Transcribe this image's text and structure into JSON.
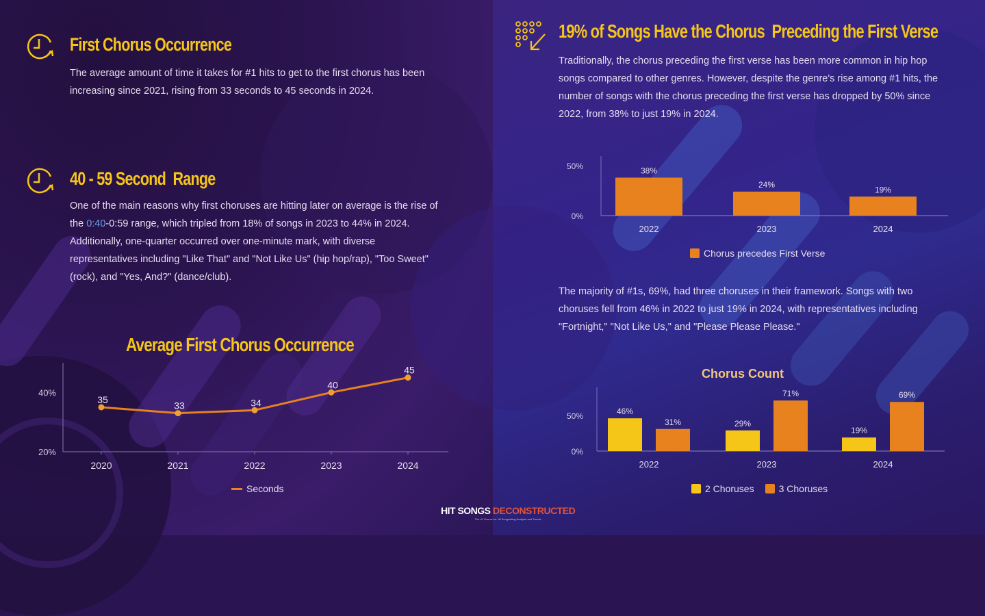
{
  "left": {
    "section1": {
      "icon": "clock-refresh-icon",
      "title": "First Chorus Occurrence",
      "body": "The average amount of time it takes for #1 hits to get to the first chorus has been increasing since 2021, rising from 33 seconds to 45 seconds in 2024."
    },
    "section2": {
      "icon": "clock-refresh-icon",
      "title": "40 - 59 Second  Range",
      "body_pre": "One of the main reasons why first choruses are hitting later on average is the rise of the ",
      "body_highlight": "0:40",
      "body_post": "-0:59 range, which tripled from 18% of songs in 2023 to 44% in 2024. Additionally, one-quarter occurred over one-minute mark, with diverse representatives including \"Like That\" and \"Not Like Us\" (hip hop/rap), \"Too Sweet\" (rock), and \"Yes, And?\" (dance/club)."
    }
  },
  "right": {
    "section1": {
      "icon": "dot-grid-arrow-icon",
      "title": "19% of Songs Have the Chorus  Preceding the First Verse",
      "body": "Traditionally, the chorus preceding the first verse has been more common in hip hop songs compared to other genres. However, despite the genre's rise among #1 hits, the number of songs with the chorus preceding the first verse has dropped by 50% since 2022, from 38% to just 19% in 2024."
    },
    "section2": {
      "body": "The majority of #1s, 69%, had three choruses in their framework. Songs with two choruses fell from 46% in 2022 to just 19% in 2024, with representatives including \"Fortnight,\" \"Not Like Us,\" and \"Please Please Please.\""
    }
  },
  "colors": {
    "accent_yellow": "#f5c518",
    "orange": "#e8821e",
    "yellow_bar": "#f5c518",
    "text": "#e6dcef"
  },
  "brand": {
    "part1": "HIT SONGS",
    "part2": "DECONSTRUCTED",
    "tagline": "The #1 Source for Hit Songwriting Analysis and Trends"
  },
  "chart_data": [
    {
      "type": "line",
      "title": "Average First Chorus Occurrence",
      "categories": [
        "2020",
        "2021",
        "2022",
        "2023",
        "2024"
      ],
      "series": [
        {
          "name": "Seconds",
          "values": [
            35,
            33,
            34,
            40,
            45
          ]
        }
      ],
      "data_labels": [
        "35",
        "33",
        "34",
        "40",
        "45"
      ],
      "y_ticks": [
        "20%",
        "40%"
      ],
      "ylim": [
        20,
        50
      ],
      "xlabel": "",
      "ylabel": "",
      "legend": "bottom",
      "grid": false
    },
    {
      "type": "bar",
      "title": "",
      "categories": [
        "2022",
        "2023",
        "2024"
      ],
      "series": [
        {
          "name": "Chorus precedes First Verse",
          "values": [
            38,
            24,
            19
          ]
        }
      ],
      "data_labels": [
        "38%",
        "24%",
        "19%"
      ],
      "y_ticks": [
        "0%",
        "50%"
      ],
      "ylim": [
        0,
        55
      ],
      "legend": "bottom",
      "grid": false
    },
    {
      "type": "bar",
      "title": "Chorus Count",
      "categories": [
        "2022",
        "2023",
        "2024"
      ],
      "series": [
        {
          "name": "2 Choruses",
          "values": [
            46,
            29,
            19
          ],
          "labels": [
            "46%",
            "29%",
            "19%"
          ]
        },
        {
          "name": "3 Choruses",
          "values": [
            31,
            71,
            69
          ],
          "labels": [
            "31%",
            "71%",
            "69%"
          ]
        }
      ],
      "y_ticks": [
        "0%",
        "50%"
      ],
      "ylim": [
        0,
        85
      ],
      "legend": "bottom",
      "grid": false
    }
  ]
}
